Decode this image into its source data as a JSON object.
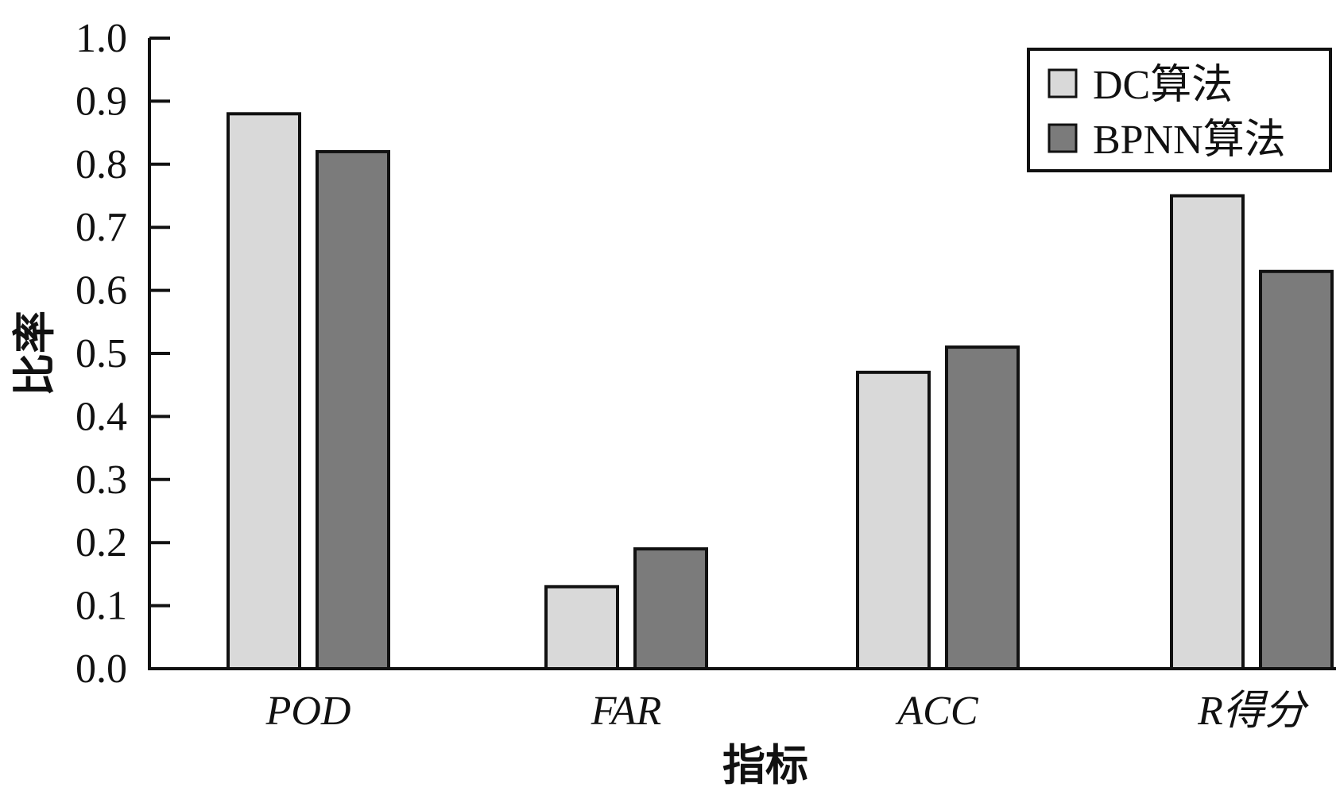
{
  "colors": {
    "series1": "#d9d9d9",
    "series2": "#7b7b7b",
    "axis": "#111111"
  },
  "chart_data": {
    "type": "bar",
    "categories": [
      "POD",
      "FAR",
      "ACC",
      "R得分"
    ],
    "series": [
      {
        "name": "DC算法",
        "values": [
          0.88,
          0.13,
          0.47,
          0.75
        ]
      },
      {
        "name": "BPNN算法",
        "values": [
          0.82,
          0.19,
          0.51,
          0.63
        ]
      }
    ],
    "ylim": [
      0.0,
      1.0
    ],
    "yticks": [
      "0.0",
      "0.1",
      "0.2",
      "0.3",
      "0.4",
      "0.5",
      "0.6",
      "0.7",
      "0.8",
      "0.9",
      "1.0"
    ],
    "xlabel": "指标",
    "ylabel": "比率",
    "legend_position": "top-right",
    "grid": false
  }
}
